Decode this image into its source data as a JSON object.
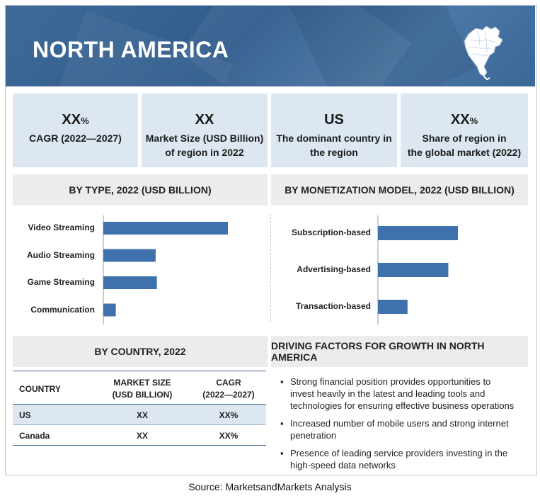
{
  "header": {
    "title": "NORTH AMERICA",
    "map_icon": "north-america-map-icon"
  },
  "stats": [
    {
      "value": "XX",
      "unit": "%",
      "caption_lines": [
        "CAGR (2022—2027)"
      ]
    },
    {
      "value": "XX",
      "unit": "",
      "caption_lines": [
        "Market Size (USD Billion)",
        "of region in 2022"
      ]
    },
    {
      "value": "US",
      "unit": "",
      "caption_lines": [
        "The dominant country in",
        "the region"
      ]
    },
    {
      "value": "XX",
      "unit": "%",
      "caption_lines": [
        "Share of region in",
        "the global market (2022)"
      ]
    }
  ],
  "chart_data": [
    {
      "type": "bar",
      "orientation": "horizontal",
      "title": "BY TYPE, 2022 (USD BILLION)",
      "categories": [
        "Video Streaming",
        "Audio Streaming",
        "Game Streaming",
        "Communication"
      ],
      "values": [
        100,
        42,
        43,
        10
      ],
      "color": "#3f72ad"
    },
    {
      "type": "bar",
      "orientation": "horizontal",
      "title": "BY MONETIZATION MODEL, 2022 (USD BILLION)",
      "categories": [
        "Subscription-based",
        "Advertising-based",
        "Transaction-based"
      ],
      "values": [
        100,
        88,
        37
      ],
      "color": "#3f72ad"
    }
  ],
  "country": {
    "title": "BY COUNTRY, 2022",
    "headers": {
      "country": "COUNTRY",
      "size_l1": "MARKET SIZE",
      "size_l2": "(USD BILLION)",
      "cagr_l1": "CAGR",
      "cagr_l2": "(2022—2027)"
    },
    "rows": [
      {
        "country": "US",
        "size": "XX",
        "cagr": "XX%"
      },
      {
        "country": "Canada",
        "size": "XX",
        "cagr": "XX%"
      }
    ]
  },
  "drivers": {
    "title": "DRIVING FACTORS FOR GROWTH IN NORTH AMERICA",
    "bullet": "▪",
    "items": [
      {
        "lines": [
          "Strong financial position provides opportunities to",
          "invest heavily in the latest and leading tools and",
          "technologies for ensuring effective business operations"
        ]
      },
      {
        "lines": [
          "Increased number of mobile users and strong internet",
          "penetration"
        ]
      },
      {
        "lines": [
          "Presence of leading service providers investing in the",
          "high-speed data networks"
        ]
      }
    ]
  },
  "source": "Source: MarketsandMarkets Analysis",
  "colors": {
    "header": "#3f6a98",
    "accent": "#3f72ad",
    "card": "#dde7f1",
    "section": "#ececec"
  }
}
